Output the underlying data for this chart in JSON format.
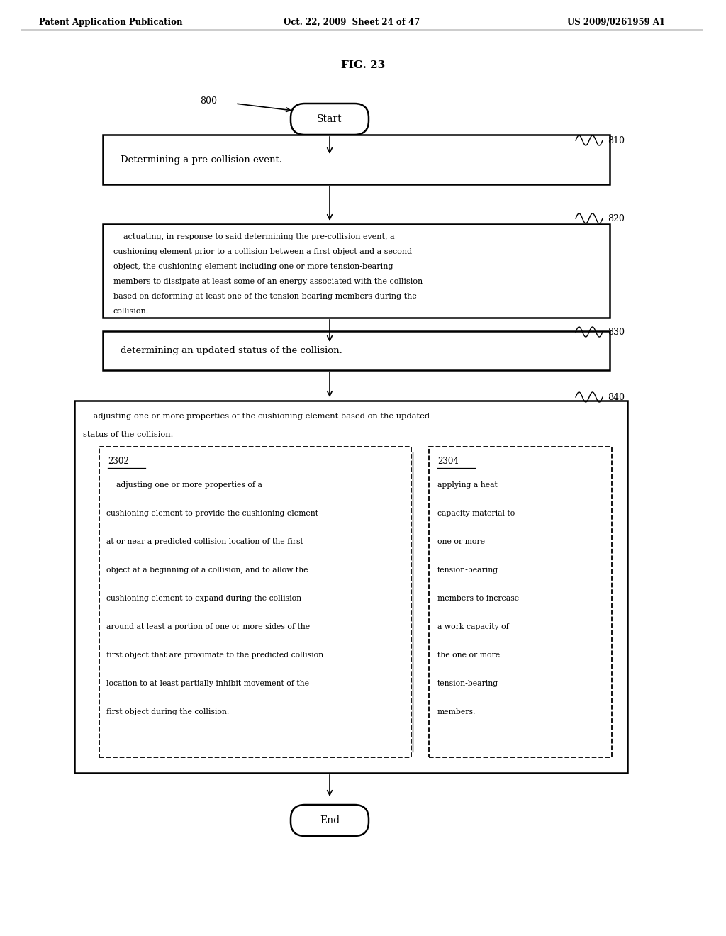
{
  "header_left": "Patent Application Publication",
  "header_mid": "Oct. 22, 2009  Sheet 24 of 47",
  "header_right": "US 2009/0261959 A1",
  "fig_label": "FIG. 23",
  "start_label": "Start",
  "end_label": "End",
  "ref_800": "800",
  "ref_810": "810",
  "ref_820": "820",
  "ref_830": "830",
  "ref_840": "840",
  "ref_2302": "2302",
  "ref_2304": "2304",
  "box810_text": "Determining a pre-collision event.",
  "box820_lines": [
    "    actuating, in response to said determining the pre-collision event, a",
    "cushioning element prior to a collision between a first object and a second",
    "object, the cushioning element including one or more tension-bearing",
    "members to dissipate at least some of an energy associated with the collision",
    "based on deforming at least one of the tension-bearing members during the",
    "collision."
  ],
  "box830_text": "determining an updated status of the collision.",
  "box840_text_lines": [
    "    adjusting one or more properties of the cushioning element based on the updated",
    "status of the collision."
  ],
  "box2302_lines": [
    "    adjusting one or more properties of a",
    "cushioning element to provide the cushioning element",
    "at or near a predicted collision location of the first",
    "object at a beginning of a collision, and to allow the",
    "cushioning element to expand during the collision",
    "around at least a portion of one or more sides of the",
    "first object that are proximate to the predicted collision",
    "location to at least partially inhibit movement of the",
    "first object during the collision."
  ],
  "box2304_lines": [
    "applying a heat",
    "capacity material to",
    "one or more",
    "tension-bearing",
    "members to increase",
    "a work capacity of",
    "the one or more",
    "tension-bearing",
    "members."
  ],
  "bg_color": "#ffffff",
  "text_color": "#000000"
}
